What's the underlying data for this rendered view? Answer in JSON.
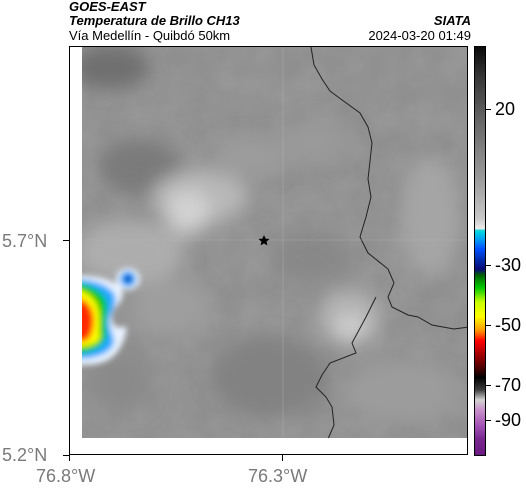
{
  "header": {
    "satellite": "GOES-EAST",
    "product": "Temperatura de Brillo CH13",
    "route": "Vía Medellín - Quibdó 50km",
    "agency": "SIATA",
    "timestamp": "2024-03-20 01:49"
  },
  "map": {
    "lon_labels": [
      "76.8°W",
      "76.3°W"
    ],
    "lat_labels": [
      "5.7°N",
      "5.2°N"
    ],
    "marker_icon": "star-icon"
  },
  "colorbar": {
    "tick_labels": [
      "20",
      "-30",
      "-50",
      "-70",
      "-90"
    ]
  },
  "colors": {
    "background_gray": "#8f8f8f",
    "frame": "#000000"
  }
}
